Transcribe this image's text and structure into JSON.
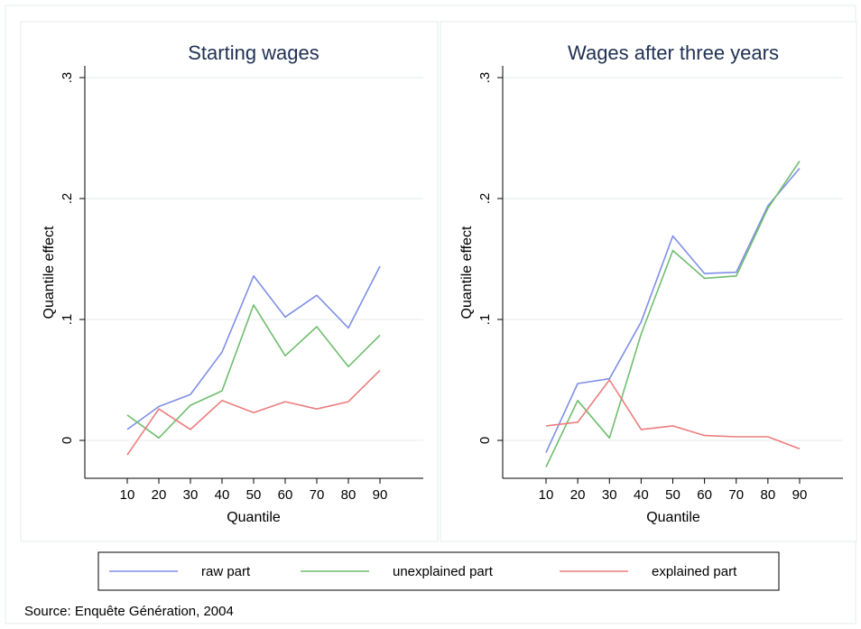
{
  "chart_data": [
    {
      "type": "line",
      "title": "Starting wages",
      "xlabel": "Quantile",
      "ylabel": "Quantile effect",
      "x": [
        10,
        20,
        30,
        40,
        50,
        60,
        70,
        80,
        90
      ],
      "xticks": [
        "10",
        "20",
        "30",
        "40",
        "50",
        "60",
        "70",
        "80",
        "90"
      ],
      "yticks": [
        "0",
        ".1",
        ".2",
        ".3"
      ],
      "ylim": [
        -0.03,
        0.31
      ],
      "grid": true,
      "series": [
        {
          "name": "raw part",
          "color": "#7f8fe6",
          "values": [
            0.009,
            0.028,
            0.038,
            0.073,
            0.136,
            0.102,
            0.12,
            0.093,
            0.144
          ]
        },
        {
          "name": "unexplained part",
          "color": "#6fbd6f",
          "values": [
            0.021,
            0.002,
            0.029,
            0.041,
            0.112,
            0.07,
            0.094,
            0.061,
            0.087
          ]
        },
        {
          "name": "explained part",
          "color": "#ec7d7d",
          "values": [
            -0.012,
            0.026,
            0.009,
            0.033,
            0.023,
            0.032,
            0.026,
            0.032,
            0.058
          ]
        }
      ]
    },
    {
      "type": "line",
      "title": "Wages after three years",
      "xlabel": "Quantile",
      "ylabel": "Quantile effect",
      "x": [
        10,
        20,
        30,
        40,
        50,
        60,
        70,
        80,
        90
      ],
      "xticks": [
        "10",
        "20",
        "30",
        "40",
        "50",
        "60",
        "70",
        "80",
        "90"
      ],
      "yticks": [
        "0",
        ".1",
        ".2",
        ".3"
      ],
      "ylim": [
        -0.03,
        0.31
      ],
      "grid": true,
      "series": [
        {
          "name": "raw part",
          "color": "#7f8fe6",
          "values": [
            -0.01,
            0.047,
            0.051,
            0.098,
            0.169,
            0.138,
            0.139,
            0.194,
            0.225
          ]
        },
        {
          "name": "unexplained part",
          "color": "#6fbd6f",
          "values": [
            -0.022,
            0.033,
            0.002,
            0.088,
            0.157,
            0.134,
            0.136,
            0.192,
            0.231
          ]
        },
        {
          "name": "explained part",
          "color": "#ec7d7d",
          "values": [
            0.012,
            0.015,
            0.05,
            0.009,
            0.012,
            0.004,
            0.003,
            0.003,
            -0.007
          ]
        }
      ]
    }
  ],
  "legend": {
    "placement": "bottom",
    "items": [
      {
        "label": "raw part",
        "color": "#7f8fe6"
      },
      {
        "label": "unexplained part",
        "color": "#6fbd6f"
      },
      {
        "label": "explained part",
        "color": "#ec7d7d"
      }
    ]
  },
  "source_note": "Source: Enquête Génération, 2004"
}
